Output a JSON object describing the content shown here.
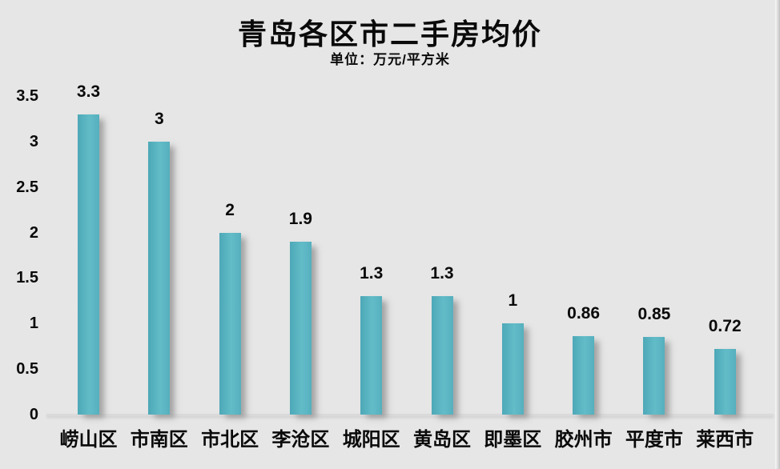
{
  "window": {
    "background": "#e6e6e6"
  },
  "chart_data": {
    "type": "bar",
    "title": "青岛各区市二手房均价",
    "subtitle": "单位：万元/平方米",
    "categories": [
      "崂山区",
      "市南区",
      "市北区",
      "李沧区",
      "城阳区",
      "黄岛区",
      "即墨区",
      "胶州市",
      "平度市",
      "莱西市"
    ],
    "values": [
      3.3,
      3,
      2,
      1.9,
      1.3,
      1.3,
      1,
      0.86,
      0.85,
      0.72
    ],
    "data_labels": [
      "3.3",
      "3",
      "2",
      "1.9",
      "1.3",
      "1.3",
      "1",
      "0.86",
      "0.85",
      "0.72"
    ],
    "xlabel": "",
    "ylabel": "",
    "ylim": [
      0,
      3.5
    ],
    "ytick_labels": [
      "0",
      "0.5",
      "1",
      "1.5",
      "2",
      "2.5",
      "3",
      "3.5"
    ],
    "grid": false,
    "legend": false,
    "colors": {
      "bar_gradient_left": "#4da8b7",
      "bar_gradient_mid": "#62bcc8",
      "bar_gradient_right": "#55afbd",
      "axis_line": "#dadada",
      "text": "#0a0a0a",
      "background": "#e6e6e6"
    }
  }
}
